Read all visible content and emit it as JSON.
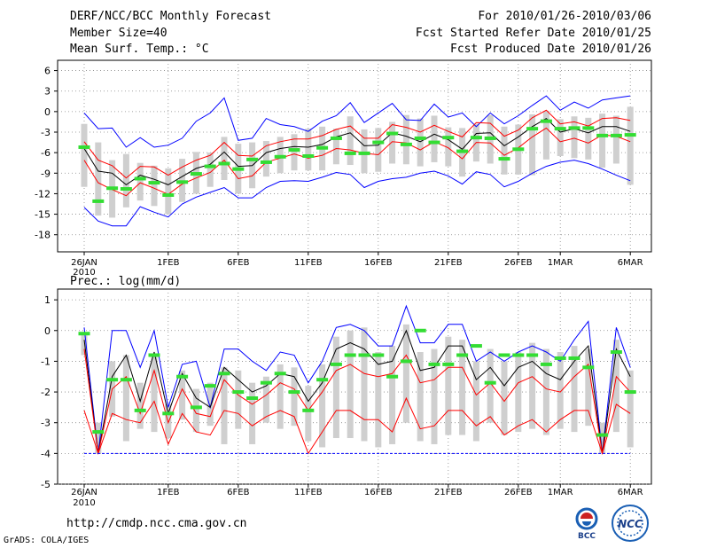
{
  "header": {
    "title": "DERF/NCC/BCC Monthly Forecast",
    "member_size": "Member Size=40",
    "variable": "Mean Surf. Temp.: °C",
    "period": "For 2010/01/26-2010/03/06",
    "started": "Fcst Started Refer Date 2010/01/25",
    "produced": "Fcst Produced Date 2010/01/26"
  },
  "precip_label": "Prec.: log(mm/d)",
  "footer": {
    "url": "http://cmdp.ncc.cma.gov.cn",
    "credit": "GrADS: COLA/IGES"
  },
  "logos": {
    "bcc_text": "BCC",
    "ncc_text": "NCC"
  },
  "chart_data": [
    {
      "type": "line",
      "title": "Mean Surf. Temp.: °C",
      "x": [
        "01-26",
        "01-27",
        "01-28",
        "01-29",
        "01-30",
        "01-31",
        "02-01",
        "02-02",
        "02-03",
        "02-04",
        "02-05",
        "02-06",
        "02-07",
        "02-08",
        "02-09",
        "02-10",
        "02-11",
        "02-12",
        "02-13",
        "02-14",
        "02-15",
        "02-16",
        "02-17",
        "02-18",
        "02-19",
        "02-20",
        "02-21",
        "02-22",
        "02-23",
        "02-24",
        "02-25",
        "02-26",
        "02-27",
        "02-28",
        "03-01",
        "03-02",
        "03-03",
        "03-04",
        "03-05",
        "03-06"
      ],
      "x_ticks": [
        {
          "i": 0,
          "label": "26JAN",
          "sub": "2010"
        },
        {
          "i": 6,
          "label": "1FEB"
        },
        {
          "i": 11,
          "label": "6FEB"
        },
        {
          "i": 16,
          "label": "11FEB"
        },
        {
          "i": 21,
          "label": "16FEB"
        },
        {
          "i": 26,
          "label": "21FEB"
        },
        {
          "i": 31,
          "label": "26FEB"
        },
        {
          "i": 34,
          "label": "1MAR"
        },
        {
          "i": 39,
          "label": "6MAR"
        }
      ],
      "yticks": [
        6,
        3,
        0,
        -3,
        -6,
        -9,
        -12,
        -15,
        -18
      ],
      "ylim": [
        -20.5,
        7.5
      ],
      "series": [
        {
          "name": "max",
          "color": "#0000ff",
          "values": [
            -0.2,
            -2.5,
            -2.4,
            -5.2,
            -3.8,
            -5.2,
            -4.9,
            -3.9,
            -1.4,
            -0.2,
            2.0,
            -4.2,
            -3.9,
            -1.0,
            -1.9,
            -2.2,
            -2.9,
            -1.4,
            -0.6,
            1.3,
            -1.6,
            -0.2,
            1.2,
            -1.2,
            -1.3,
            1.1,
            -0.8,
            -0.2,
            -2.2,
            -0.2,
            -1.8,
            -0.6,
            0.9,
            2.3,
            0.2,
            1.4,
            0.5,
            1.7,
            2.0,
            2.3
          ]
        },
        {
          "name": "p75",
          "color": "#ff0000",
          "values": [
            -4.4,
            -7.1,
            -7.9,
            -9.7,
            -8.0,
            -8.1,
            -9.3,
            -8.1,
            -7.1,
            -6.4,
            -4.5,
            -6.4,
            -6.5,
            -5.0,
            -4.4,
            -4.0,
            -4.0,
            -3.5,
            -2.6,
            -2.1,
            -3.9,
            -3.9,
            -1.9,
            -2.3,
            -3.0,
            -2.0,
            -2.9,
            -3.7,
            -1.6,
            -1.7,
            -3.6,
            -2.7,
            -0.9,
            0.2,
            -1.8,
            -1.5,
            -2.1,
            -1.0,
            -0.9,
            -1.3
          ]
        },
        {
          "name": "mean",
          "color": "#000000",
          "values": [
            -5.4,
            -8.7,
            -9.0,
            -10.7,
            -9.3,
            -9.9,
            -10.7,
            -9.5,
            -8.3,
            -7.7,
            -5.9,
            -8.0,
            -7.9,
            -6.0,
            -5.4,
            -5.1,
            -5.2,
            -4.8,
            -3.7,
            -3.1,
            -5.0,
            -4.9,
            -3.1,
            -3.6,
            -4.4,
            -3.3,
            -4.1,
            -5.5,
            -3.2,
            -3.1,
            -5.0,
            -3.7,
            -2.2,
            -1.0,
            -3.0,
            -2.5,
            -3.1,
            -2.2,
            -2.2,
            -2.9
          ]
        },
        {
          "name": "p25",
          "color": "#ff0000",
          "values": [
            -7.1,
            -10.4,
            -11.4,
            -12.3,
            -10.4,
            -11.2,
            -12.1,
            -10.6,
            -9.7,
            -8.9,
            -7.1,
            -9.8,
            -9.4,
            -7.4,
            -6.8,
            -6.2,
            -6.8,
            -6.4,
            -5.4,
            -5.6,
            -6.1,
            -6.3,
            -4.4,
            -4.6,
            -5.6,
            -4.4,
            -5.3,
            -6.9,
            -4.5,
            -4.6,
            -6.4,
            -5.3,
            -3.7,
            -2.4,
            -4.4,
            -3.9,
            -4.6,
            -3.4,
            -3.6,
            -4.4
          ]
        },
        {
          "name": "min",
          "color": "#0000ff",
          "values": [
            -14.0,
            -16.0,
            -16.7,
            -16.7,
            -13.9,
            -14.7,
            -15.4,
            -13.5,
            -12.5,
            -11.8,
            -11.1,
            -12.6,
            -12.6,
            -11.1,
            -10.2,
            -10.1,
            -10.2,
            -9.6,
            -8.9,
            -9.2,
            -11.1,
            -10.2,
            -9.8,
            -9.6,
            -9.0,
            -8.7,
            -9.4,
            -10.6,
            -8.8,
            -9.2,
            -11.0,
            -10.2,
            -9.0,
            -8.0,
            -7.4,
            -7.1,
            -7.6,
            -8.4,
            -9.3,
            -10.1
          ]
        }
      ],
      "box": {
        "low": [
          -11.0,
          -15.2,
          -15.5,
          -14.0,
          -13.0,
          -13.8,
          -15.0,
          -13.2,
          -12.0,
          -11.0,
          -10.0,
          -12.0,
          -11.2,
          -9.5,
          -9.0,
          -8.6,
          -8.6,
          -8.6,
          -7.7,
          -7.8,
          -9.0,
          -8.8,
          -7.6,
          -7.7,
          -8.0,
          -7.4,
          -8.0,
          -9.5,
          -7.3,
          -7.6,
          -9.2,
          -9.2,
          -9.3,
          -7.0,
          -6.5,
          -6.8,
          -7.0,
          -8.2,
          -7.6,
          -10.7
        ],
        "high": [
          -1.8,
          -4.5,
          -7.1,
          -6.2,
          -7.5,
          -7.9,
          -8.3,
          -6.9,
          -5.9,
          -6.0,
          -3.7,
          -4.7,
          -4.5,
          -4.3,
          -3.7,
          -3.3,
          -2.5,
          -2.2,
          -2.5,
          -0.7,
          -2.6,
          -2.4,
          -1.5,
          -0.5,
          -1.0,
          -0.6,
          -2.3,
          -2.4,
          -1.8,
          -0.5,
          -2.2,
          -1.9,
          -0.4,
          0.1,
          -1.1,
          -0.7,
          -0.9,
          -0.3,
          -0.6,
          0.7
        ]
      },
      "ensemble_marker": [
        -5.2,
        -13.1,
        -11.2,
        -11.3,
        -9.8,
        -10.4,
        -12.2,
        -10.3,
        -9.1,
        -8.0,
        -7.6,
        -8.4,
        -7.0,
        -7.4,
        -6.6,
        -5.6,
        -6.5,
        -5.3,
        -3.9,
        -6.1,
        -6.1,
        -4.5,
        -3.2,
        -4.8,
        -3.9,
        -4.5,
        -3.8,
        -5.8,
        -3.8,
        -3.9,
        -6.9,
        -5.5,
        -2.5,
        -1.4,
        -2.5,
        -2.4,
        -2.4,
        -3.5,
        -3.5,
        -3.4
      ]
    },
    {
      "type": "line",
      "title": "Prec.: log(mm/d)",
      "x_ticks": [
        {
          "i": 0,
          "label": "26JAN",
          "sub": "2010"
        },
        {
          "i": 6,
          "label": "1FEB"
        },
        {
          "i": 11,
          "label": "6FEB"
        },
        {
          "i": 16,
          "label": "11FEB"
        },
        {
          "i": 21,
          "label": "16FEB"
        },
        {
          "i": 26,
          "label": "21FEB"
        },
        {
          "i": 31,
          "label": "26FEB"
        },
        {
          "i": 34,
          "label": "1MAR"
        },
        {
          "i": 39,
          "label": "6MAR"
        }
      ],
      "yticks": [
        1,
        0,
        -1,
        -2,
        -3,
        -4,
        -5
      ],
      "ylim": [
        -5.0,
        1.35
      ],
      "series": [
        {
          "name": "max",
          "color": "#0000ff",
          "values": [
            0.1,
            -4.0,
            0.0,
            0.0,
            -1.2,
            0.0,
            -2.5,
            -1.1,
            -1.0,
            -2.5,
            -0.6,
            -0.6,
            -1.0,
            -1.3,
            -0.7,
            -0.8,
            -1.7,
            -1.0,
            0.1,
            0.2,
            0.0,
            -0.5,
            -0.5,
            0.8,
            -0.4,
            -0.4,
            0.2,
            0.2,
            -1.0,
            -0.7,
            -1.0,
            -0.7,
            -0.5,
            -0.7,
            -1.0,
            -0.3,
            0.3,
            -4.0,
            0.1,
            -1.2
          ]
        },
        {
          "name": "p90",
          "color": "#000000",
          "values": [
            -0.3,
            -4.0,
            -1.5,
            -0.8,
            -2.3,
            -0.7,
            -2.7,
            -1.4,
            -2.2,
            -2.5,
            -1.2,
            -1.6,
            -2.0,
            -1.8,
            -1.4,
            -1.5,
            -2.3,
            -1.7,
            -0.6,
            -0.4,
            -0.6,
            -1.1,
            -1.0,
            0.0,
            -1.3,
            -1.2,
            -0.5,
            -0.5,
            -1.6,
            -1.2,
            -1.8,
            -1.2,
            -1.0,
            -1.4,
            -1.6,
            -1.0,
            -0.5,
            -4.0,
            -0.6,
            -1.5
          ]
        },
        {
          "name": "p75",
          "color": "#ff0000",
          "values": [
            -0.6,
            -4.0,
            -1.9,
            -1.5,
            -2.7,
            -1.3,
            -3.0,
            -1.9,
            -2.7,
            -2.8,
            -1.6,
            -2.1,
            -2.4,
            -2.1,
            -1.7,
            -1.9,
            -2.6,
            -2.0,
            -1.3,
            -1.1,
            -1.4,
            -1.5,
            -1.4,
            -0.8,
            -1.7,
            -1.6,
            -1.2,
            -1.2,
            -2.1,
            -1.7,
            -2.3,
            -1.7,
            -1.5,
            -1.9,
            -2.0,
            -1.5,
            -1.1,
            -4.0,
            -1.5,
            -2.0
          ]
        },
        {
          "name": "p50",
          "color": "#ff0000",
          "values": [
            -2.6,
            -4.0,
            -2.7,
            -2.9,
            -3.0,
            -2.3,
            -3.7,
            -2.7,
            -3.3,
            -3.4,
            -2.6,
            -2.7,
            -3.1,
            -2.8,
            -2.6,
            -2.8,
            -4.0,
            -3.3,
            -2.6,
            -2.6,
            -2.9,
            -2.9,
            -3.3,
            -2.2,
            -3.2,
            -3.1,
            -2.6,
            -2.6,
            -3.1,
            -2.8,
            -3.4,
            -3.1,
            -2.9,
            -3.3,
            -2.9,
            -2.6,
            -2.6,
            -4.0,
            -2.4,
            -2.7
          ]
        },
        {
          "name": "min",
          "color": "#0000ff",
          "values": [
            -4.0,
            -4.0,
            -4.0,
            -4.0,
            -4.0,
            -4.0,
            -4.0,
            -4.0,
            -4.0,
            -4.0,
            -4.0,
            -4.0,
            -4.0,
            -4.0,
            -4.0,
            -4.0,
            -4.0,
            -4.0,
            -4.0,
            -4.0,
            -4.0,
            -4.0,
            -4.0,
            -4.0,
            -4.0,
            -4.0,
            -4.0,
            -4.0,
            -4.0,
            -4.0,
            -4.0,
            -4.0,
            -4.0,
            -4.0,
            -4.0,
            -4.0,
            -4.0,
            -4.0,
            -4.0,
            -4.0
          ]
        }
      ],
      "box": {
        "low": [
          -0.8,
          -4.0,
          -2.8,
          -3.6,
          -3.2,
          -3.3,
          -3.5,
          -2.9,
          -3.3,
          -3.1,
          -3.7,
          -3.2,
          -3.7,
          -3.0,
          -3.2,
          -3.1,
          -3.6,
          -3.8,
          -3.5,
          -3.5,
          -3.6,
          -3.8,
          -3.7,
          -3.0,
          -3.6,
          -3.7,
          -3.4,
          -3.4,
          -3.6,
          -3.0,
          -3.4,
          -3.3,
          -3.2,
          -3.4,
          -3.2,
          -3.3,
          -3.1,
          -4.0,
          -3.3,
          -3.8
        ],
        "high": [
          -0.1,
          -3.0,
          -1.0,
          -0.8,
          -1.7,
          -0.8,
          -2.4,
          -1.3,
          -1.9,
          -1.7,
          -1.2,
          -1.3,
          -1.7,
          -1.5,
          -1.1,
          -1.2,
          -1.8,
          -1.1,
          -0.2,
          0.0,
          0.1,
          -0.7,
          -0.5,
          0.2,
          -0.7,
          -0.6,
          -0.2,
          -0.3,
          -1.0,
          -0.6,
          -1.0,
          -0.7,
          -0.4,
          -0.6,
          -0.7,
          -0.5,
          -0.6,
          -3.0,
          -0.3,
          -1.3
        ]
      },
      "ensemble_marker": [
        -0.1,
        -3.3,
        -1.6,
        -1.6,
        -2.6,
        -0.8,
        -2.7,
        -1.5,
        -2.5,
        -1.8,
        -1.4,
        -2.0,
        -2.2,
        -1.7,
        -1.4,
        -2.0,
        -2.6,
        -1.6,
        -1.1,
        -0.8,
        -0.8,
        -0.8,
        -1.5,
        -1.0,
        0.0,
        -1.1,
        -1.1,
        -0.8,
        -0.5,
        -1.7,
        -0.8,
        -0.8,
        -0.8,
        -1.1,
        -0.9,
        -0.9,
        -1.2,
        -3.4,
        -0.7,
        -2.0
      ]
    }
  ]
}
